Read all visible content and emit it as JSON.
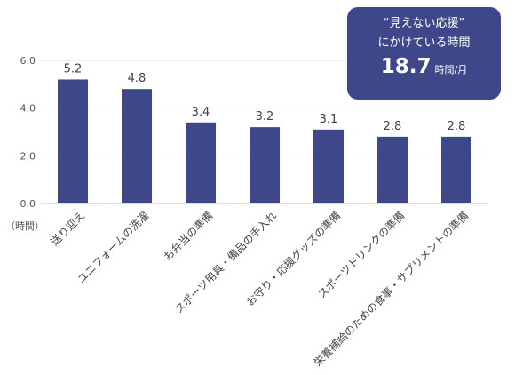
{
  "callout": {
    "line1": "“見えない応援”",
    "line2": "にかけている時間",
    "value": "18.7",
    "unit": "時間/月"
  },
  "chart_data": {
    "type": "bar",
    "unit_label": "（時間）",
    "categories": [
      "送り迎え",
      "ユニフォームの洗濯",
      "お弁当の準備",
      "スポーツ用具・備品の手入れ",
      "お守り・応援グッズの準備",
      "スポーツドリンクの準備",
      "栄養補給のための食事・サプリメントの準備"
    ],
    "values": [
      5.2,
      4.8,
      3.4,
      3.2,
      3.1,
      2.8,
      2.8
    ],
    "value_labels": [
      "5.2",
      "4.8",
      "3.4",
      "3.2",
      "3.1",
      "2.8",
      "2.8"
    ],
    "yticks": [
      "0.0",
      "2.0",
      "4.0",
      "6.0"
    ],
    "ylim": [
      0,
      6
    ],
    "bar_color": "#3d4789",
    "grid": true
  }
}
